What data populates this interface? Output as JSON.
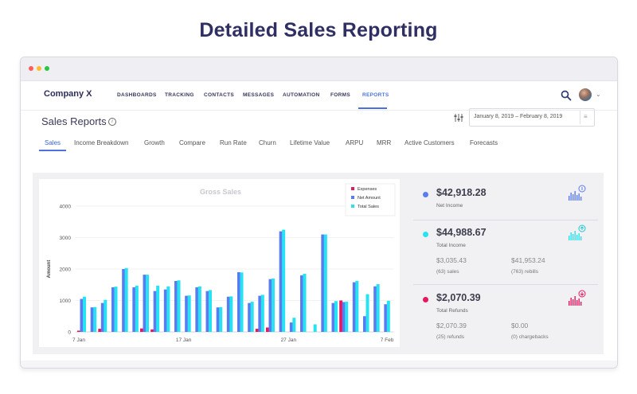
{
  "headline": "Detailed Sales Reporting",
  "colors": {
    "accent": "#4a73e0",
    "expenses": "#e8175d",
    "net_amount": "#5b7cf0",
    "total_sales": "#25e3f2",
    "window_dots": [
      "#ff5f57",
      "#ffbd2e",
      "#28c840"
    ]
  },
  "nav": {
    "brand": "Company X",
    "items": [
      "DASHBOARDS",
      "TRACKING",
      "CONTACTS",
      "MESSAGES",
      "AUTOMATION",
      "FORMS",
      "REPORTS"
    ],
    "active": "REPORTS",
    "icons": {
      "search": "search-icon",
      "avatar": "user-avatar",
      "menu": "chevron-down-icon"
    }
  },
  "page": {
    "title": "Sales Reports",
    "info_icon": "i",
    "date_range": "January 8, 2019  –  February 8, 2019",
    "menu_glyph": "≡"
  },
  "tabs": [
    "Sales",
    "Income Breakdown",
    "Growth",
    "Compare",
    "Run Rate",
    "Churn",
    "Lifetime Value",
    "ARPU",
    "MRR",
    "Active Customers",
    "Forecasts"
  ],
  "active_tab": "Sales",
  "chart_data": {
    "type": "bar",
    "title": "Gross Sales",
    "ylabel": "Amount",
    "xlabel": "",
    "ylim": [
      0,
      4000
    ],
    "yticks": [
      0,
      1000,
      2000,
      3000,
      4000
    ],
    "xtick_labels": [
      "7 Jan",
      "17 Jan",
      "27 Jan",
      "7 Feb"
    ],
    "legend_position": "top-right",
    "series": [
      {
        "name": "Expenses",
        "values": [
          40,
          0,
          100,
          0,
          0,
          0,
          110,
          80,
          0,
          0,
          0,
          0,
          0,
          0,
          0,
          0,
          0,
          100,
          140,
          0,
          0,
          0,
          0,
          0,
          0,
          1000,
          0,
          0,
          0,
          0
        ]
      },
      {
        "name": "Net Amount",
        "values": [
          1050,
          780,
          920,
          1420,
          2000,
          1420,
          1820,
          1300,
          1350,
          1620,
          1150,
          1420,
          1300,
          780,
          1120,
          1900,
          920,
          1150,
          1680,
          3200,
          300,
          1800,
          0,
          3100,
          920,
          950,
          1580,
          500,
          1450,
          880
        ]
      },
      {
        "name": "Total Sales",
        "values": [
          1120,
          790,
          1020,
          1440,
          2030,
          1470,
          1820,
          1470,
          1450,
          1640,
          1160,
          1450,
          1330,
          790,
          1130,
          1890,
          960,
          1180,
          1700,
          3250,
          450,
          1850,
          240,
          3100,
          980,
          960,
          1620,
          1200,
          1520,
          990
        ]
      }
    ]
  },
  "stats": {
    "net_income": {
      "value": "$42,918.28",
      "label": "Net Income"
    },
    "total_income": {
      "value": "$44,988.67",
      "label": "Total Income",
      "sub1_value": "$3,035.43",
      "sub1_label": "(63) sales",
      "sub2_value": "$41,953.24",
      "sub2_label": "(763) rebills"
    },
    "total_refunds": {
      "value": "$2,070.39",
      "label": "Total Refunds",
      "sub1_value": "$2,070.39",
      "sub1_label": "(25) refunds",
      "sub2_value": "$0.00",
      "sub2_label": "(0) chargebacks"
    }
  }
}
